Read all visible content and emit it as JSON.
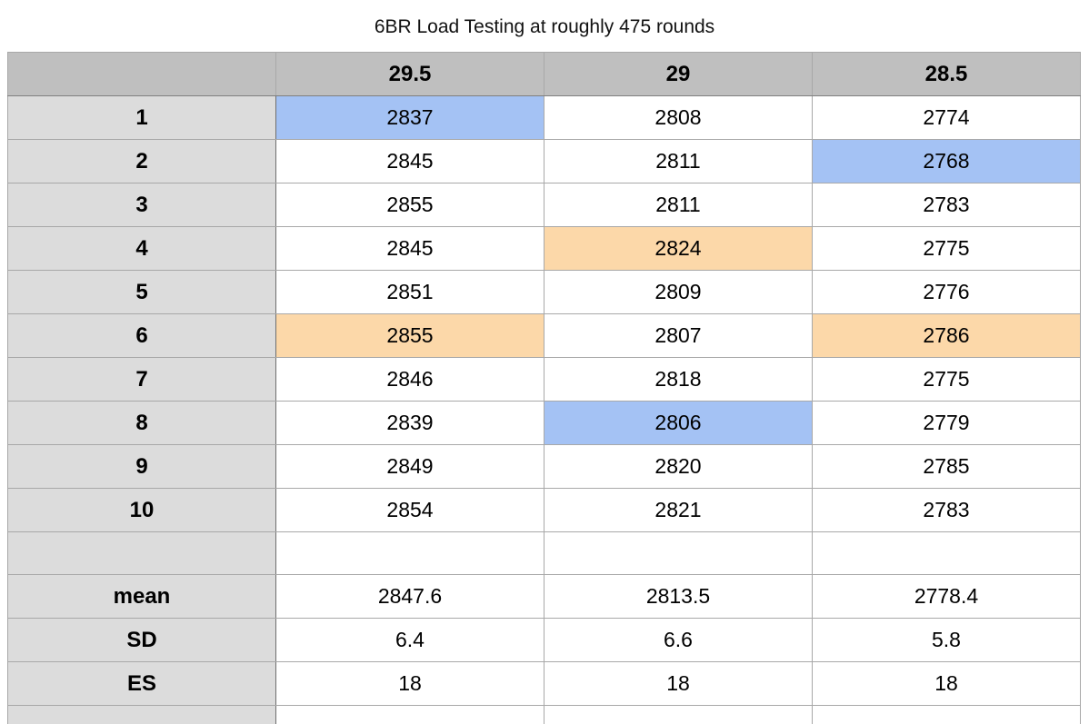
{
  "title": "6BR Load Testing at roughly 475 rounds",
  "columns": [
    "",
    "29.5",
    "29",
    "28.5"
  ],
  "rows": [
    {
      "label": "1",
      "values": [
        "2837",
        "2808",
        "2774"
      ],
      "highlight": [
        "blue",
        "",
        ""
      ]
    },
    {
      "label": "2",
      "values": [
        "2845",
        "2811",
        "2768"
      ],
      "highlight": [
        "",
        "",
        "blue"
      ]
    },
    {
      "label": "3",
      "values": [
        "2855",
        "2811",
        "2783"
      ],
      "highlight": [
        "",
        "",
        ""
      ]
    },
    {
      "label": "4",
      "values": [
        "2845",
        "2824",
        "2775"
      ],
      "highlight": [
        "",
        "orange",
        ""
      ]
    },
    {
      "label": "5",
      "values": [
        "2851",
        "2809",
        "2776"
      ],
      "highlight": [
        "",
        "",
        ""
      ]
    },
    {
      "label": "6",
      "values": [
        "2855",
        "2807",
        "2786"
      ],
      "highlight": [
        "orange",
        "",
        "orange"
      ]
    },
    {
      "label": "7",
      "values": [
        "2846",
        "2818",
        "2775"
      ],
      "highlight": [
        "",
        "",
        ""
      ]
    },
    {
      "label": "8",
      "values": [
        "2839",
        "2806",
        "2779"
      ],
      "highlight": [
        "",
        "blue",
        ""
      ]
    },
    {
      "label": "9",
      "values": [
        "2849",
        "2820",
        "2785"
      ],
      "highlight": [
        "",
        "",
        ""
      ]
    },
    {
      "label": "10",
      "values": [
        "2854",
        "2821",
        "2783"
      ],
      "highlight": [
        "",
        "",
        ""
      ]
    }
  ],
  "stats": [
    {
      "label": "mean",
      "values": [
        "2847.6",
        "2813.5",
        "2778.4"
      ]
    },
    {
      "label": "SD",
      "values": [
        "6.4",
        "6.6",
        "5.8"
      ]
    },
    {
      "label": "ES",
      "values": [
        "18",
        "18",
        "18"
      ]
    }
  ],
  "colors": {
    "header_bg": "#bfbfbf",
    "row_header_bg": "#dcdcdc",
    "highlight_blue": "#a4c2f4",
    "highlight_orange": "#fcd8a9"
  }
}
